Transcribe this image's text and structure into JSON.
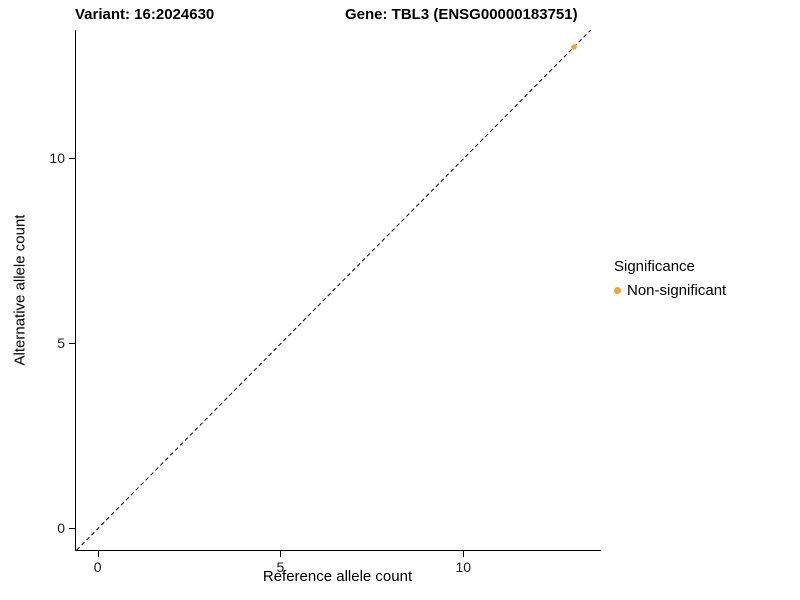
{
  "titles": {
    "variant": "Variant: 16:2024630",
    "gene": "Gene: TBL3 (ENSG00000183751)"
  },
  "chart_data": {
    "type": "scatter",
    "title": "Variant: 16:2024630   Gene: TBL3 (ENSG00000183751)",
    "xlabel": "Reference allele count",
    "ylabel": "Alternative allele count",
    "xlim": [
      -0.62,
      13.74
    ],
    "ylim": [
      -0.6,
      13.46
    ],
    "x_ticks": [
      0,
      5,
      10
    ],
    "y_ticks": [
      0,
      5,
      10
    ],
    "grid": false,
    "background": "#ffffff",
    "axis_color": "#000000",
    "reference_line": {
      "type": "dashed",
      "slope": 1,
      "intercept": 0,
      "color": "#000000"
    },
    "series": [
      {
        "name": "Non-significant",
        "color": "#F9A13A",
        "points": [
          [
            13,
            13
          ]
        ]
      }
    ],
    "legend": {
      "title": "Significance",
      "position": "right",
      "entries": [
        {
          "label": "Non-significant",
          "color": "#F9A13A"
        }
      ]
    }
  }
}
